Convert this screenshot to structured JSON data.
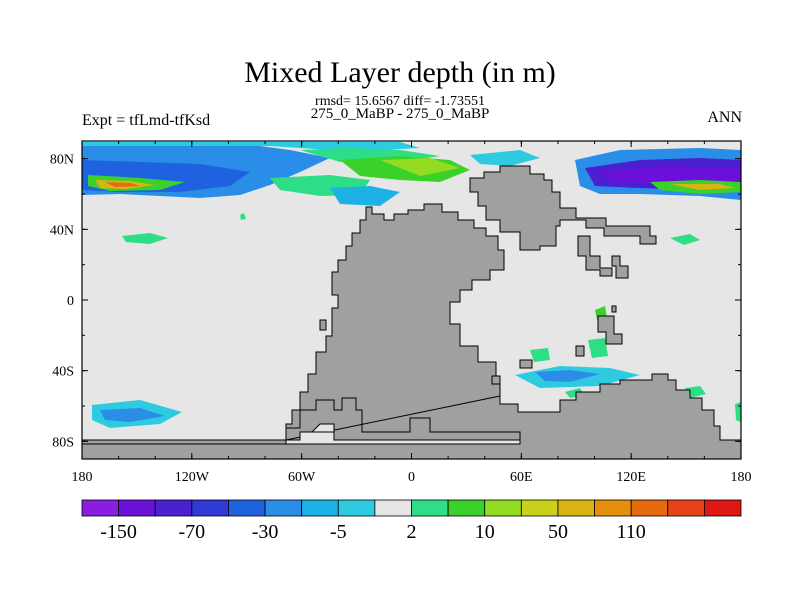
{
  "chart_data": {
    "type": "heatmap",
    "title": "Mixed Layer depth (in m)",
    "stats": "rmsd= 15.6567 diff= -1.73551",
    "subtitle": "275_0_MaBP - 275_0_MaBP",
    "left_label": "Expt = tfLmd-tfKsd",
    "right_label": "ANN",
    "x_ticks": [
      "180",
      "120W",
      "60W",
      "0",
      "60E",
      "120E",
      "180"
    ],
    "y_ticks": [
      "80N",
      "40N",
      "0",
      "40S",
      "80S"
    ],
    "xlim": [
      -180,
      180
    ],
    "ylim": [
      -90,
      90
    ],
    "land_color": "#a0a0a0",
    "ocean_color": "#e6e6e6",
    "colorbar": {
      "colors": [
        "#8a1ee0",
        "#6a10d8",
        "#4a20d0",
        "#2f3ad6",
        "#1f62e0",
        "#2a8ee8",
        "#1cb2e6",
        "#2ecbe0",
        "#e6e6e6",
        "#2ede86",
        "#3ad22a",
        "#92dc22",
        "#c8d21c",
        "#d8b414",
        "#e4900e",
        "#e66a0e",
        "#e8441a",
        "#e01814"
      ],
      "labels": [
        "-150",
        "-70",
        "-30",
        "-5",
        "2",
        "10",
        "50",
        "110"
      ]
    }
  }
}
